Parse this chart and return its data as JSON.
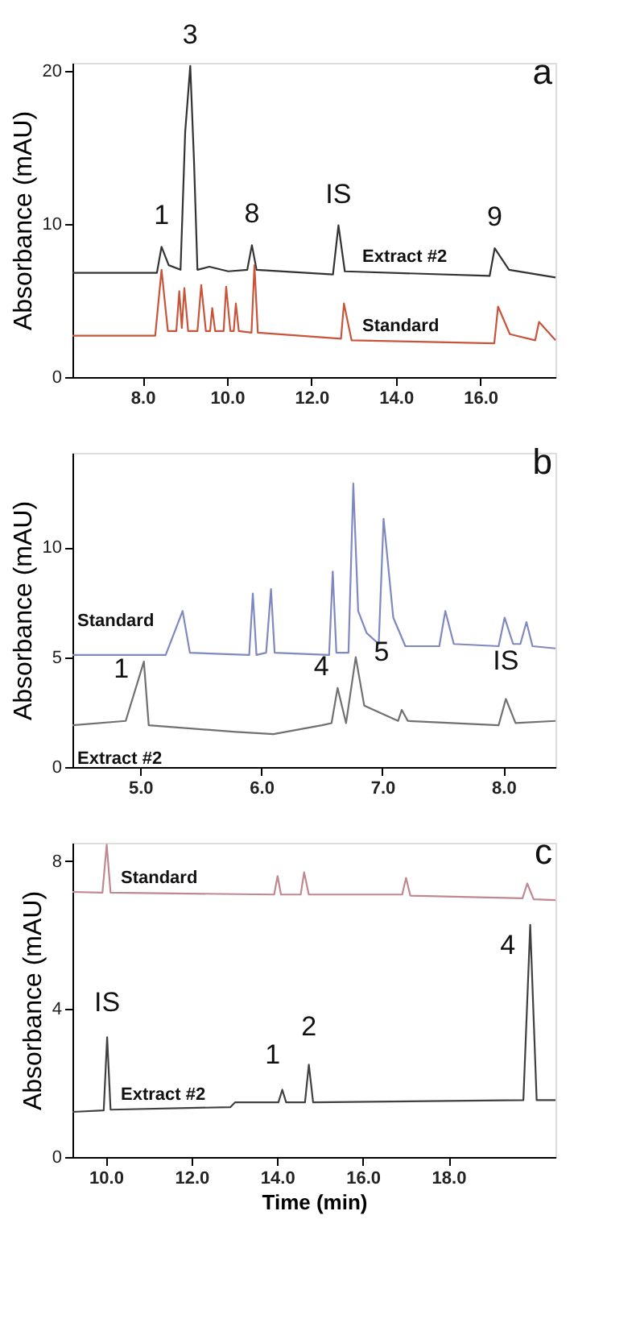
{
  "chart_data": [
    {
      "type": "line",
      "ylabel": "Absorbance (mAU)",
      "xlim": [
        6.34,
        17.78
      ],
      "ylim": [
        0,
        20.5
      ],
      "xticks": [
        {
          "value": 8,
          "label": "8.0"
        },
        {
          "value": 10,
          "label": "10.0"
        },
        {
          "value": 12,
          "label": "12.0"
        },
        {
          "value": 14,
          "label": "14.0"
        },
        {
          "value": 16,
          "label": "16.0"
        }
      ],
      "yticks": [
        0,
        10,
        20
      ],
      "grid": false,
      "legend": false,
      "marker": "none",
      "line_style": "solid",
      "annotations": [
        "a",
        {
          "text": "1",
          "x": 8.45,
          "y": 8.5
        },
        {
          "text": "3",
          "x": 9.13,
          "y": 20.3
        },
        {
          "text": "8",
          "x": 10.59,
          "y": 8.6
        },
        {
          "text": "IS",
          "x": 12.64,
          "y": 9.9
        },
        {
          "text": "9",
          "x": 16.34,
          "y": 8.4
        }
      ],
      "series": [
        {
          "name": "Extract #2",
          "color": "#333333",
          "x": [
            6.34,
            8.34,
            8.45,
            8.62,
            8.9,
            9.01,
            9.13,
            9.22,
            9.3,
            9.58,
            10.03,
            10.48,
            10.59,
            10.7,
            12.51,
            12.64,
            12.79,
            16.22,
            16.34,
            16.68,
            17.78
          ],
          "values": [
            6.8,
            6.8,
            8.5,
            7.3,
            7.0,
            16,
            20.3,
            14,
            7.0,
            7.2,
            6.9,
            7.0,
            8.6,
            7.0,
            6.7,
            9.9,
            6.9,
            6.6,
            8.4,
            7.0,
            6.5
          ]
        },
        {
          "name": "Standard",
          "color": "#c8553a",
          "x": [
            6.34,
            8.3,
            8.45,
            8.6,
            8.8,
            8.87,
            8.93,
            8.99,
            9.08,
            9.3,
            9.39,
            9.5,
            9.6,
            9.65,
            9.72,
            9.92,
            9.98,
            10.08,
            10.16,
            10.21,
            10.28,
            10.58,
            10.65,
            10.73,
            12.7,
            12.77,
            12.95,
            16.33,
            16.42,
            16.7,
            17.3,
            17.39,
            17.78
          ],
          "values": [
            2.7,
            2.7,
            7.0,
            3.0,
            3.0,
            5.6,
            3.2,
            5.8,
            3.0,
            3.0,
            6.0,
            3.0,
            3.0,
            4.5,
            3.0,
            3.0,
            5.9,
            3.0,
            3.0,
            4.8,
            3.0,
            2.9,
            7.3,
            2.9,
            2.5,
            4.8,
            2.4,
            2.2,
            4.6,
            2.8,
            2.4,
            3.6,
            2.4
          ]
        }
      ]
    },
    {
      "type": "line",
      "ylabel": "Absorbance (mAU)",
      "xlim": [
        4.44,
        8.43
      ],
      "ylim": [
        0,
        14.3
      ],
      "xticks": [
        {
          "value": 5,
          "label": "5.0"
        },
        {
          "value": 6,
          "label": "6.0"
        },
        {
          "value": 7,
          "label": "7.0"
        },
        {
          "value": 8,
          "label": "8.0"
        }
      ],
      "yticks": [
        0,
        5,
        10
      ],
      "grid": false,
      "legend": false,
      "marker": "none",
      "line_style": "solid",
      "annotations": [
        "b",
        {
          "text": "1",
          "x": 5.03,
          "y": 4.8
        },
        {
          "text": "4",
          "x": 6.63,
          "y": 3.6
        },
        {
          "text": "5",
          "x": 6.78,
          "y": 5.0
        },
        {
          "text": "IS",
          "x": 8.02,
          "y": 3.1
        }
      ],
      "series": [
        {
          "name": "Standard",
          "color": "#8088c0",
          "x": [
            4.44,
            5.21,
            5.35,
            5.41,
            5.9,
            5.93,
            5.96,
            6.04,
            6.08,
            6.11,
            6.56,
            6.59,
            6.62,
            6.72,
            6.76,
            6.8,
            6.87,
            6.97,
            7.01,
            7.09,
            7.19,
            7.47,
            7.52,
            7.59,
            7.96,
            8.01,
            8.08,
            8.14,
            8.19,
            8.24,
            8.43
          ],
          "values": [
            5.1,
            5.1,
            7.1,
            5.2,
            5.1,
            7.9,
            5.1,
            5.2,
            8.1,
            5.2,
            5.1,
            8.9,
            5.2,
            5.2,
            12.9,
            7.1,
            6.1,
            5.6,
            11.3,
            6.8,
            5.5,
            5.5,
            7.1,
            5.6,
            5.5,
            6.8,
            5.6,
            5.6,
            6.6,
            5.5,
            5.4
          ]
        },
        {
          "name": "Extract #2",
          "color": "#707070",
          "x": [
            4.44,
            4.88,
            5.03,
            5.07,
            5.79,
            6.1,
            6.5,
            6.58,
            6.63,
            6.7,
            6.78,
            6.85,
            7.13,
            7.16,
            7.21,
            7.96,
            8.02,
            8.1,
            8.43
          ],
          "values": [
            1.9,
            2.1,
            4.8,
            1.9,
            1.6,
            1.5,
            1.9,
            2.0,
            3.6,
            2.0,
            5.0,
            2.8,
            2.1,
            2.6,
            2.1,
            1.9,
            3.1,
            2.0,
            2.1
          ]
        }
      ]
    },
    {
      "type": "line",
      "ylabel": "Absorbance (mAU)",
      "xlabel": "Time (min)",
      "xlim": [
        9.22,
        20.5
      ],
      "ylim": [
        0,
        8.5
      ],
      "xticks": [
        {
          "value": 10,
          "label": "10.0"
        },
        {
          "value": 12,
          "label": "12.0"
        },
        {
          "value": 14,
          "label": "14.0"
        },
        {
          "value": 16,
          "label": "16.0"
        },
        {
          "value": 18,
          "label": "18.0"
        }
      ],
      "yticks": [
        0,
        4,
        8
      ],
      "grid": false,
      "legend": false,
      "marker": "none",
      "line_style": "solid",
      "annotations": [
        "c",
        {
          "text": "IS",
          "x": 10.03,
          "y": 3.24
        },
        {
          "text": "1",
          "x": 14.12,
          "y": 1.82
        },
        {
          "text": "2",
          "x": 14.74,
          "y": 2.5
        },
        {
          "text": "4",
          "x": 19.91,
          "y": 6.28
        }
      ],
      "series": [
        {
          "name": "Standard",
          "color": "#c08890",
          "x": [
            9.22,
            9.92,
            10.02,
            10.11,
            13.93,
            14.01,
            14.09,
            14.55,
            14.63,
            14.74,
            16.92,
            17.01,
            17.11,
            19.73,
            19.84,
            19.99,
            20.5
          ],
          "values": [
            7.17,
            7.15,
            8.45,
            7.15,
            7.1,
            7.6,
            7.1,
            7.1,
            7.7,
            7.1,
            7.1,
            7.55,
            7.07,
            7.0,
            7.4,
            6.97,
            6.95
          ]
        },
        {
          "name": "Extract #2",
          "color": "#404040",
          "x": [
            9.22,
            9.95,
            10.03,
            10.11,
            12.91,
            13.02,
            14.03,
            14.12,
            14.21,
            14.65,
            14.74,
            14.84,
            19.75,
            19.91,
            20.06,
            20.5
          ],
          "values": [
            1.22,
            1.26,
            3.24,
            1.28,
            1.35,
            1.48,
            1.48,
            1.82,
            1.48,
            1.48,
            2.5,
            1.48,
            1.54,
            6.28,
            1.54,
            1.54
          ]
        }
      ]
    }
  ]
}
